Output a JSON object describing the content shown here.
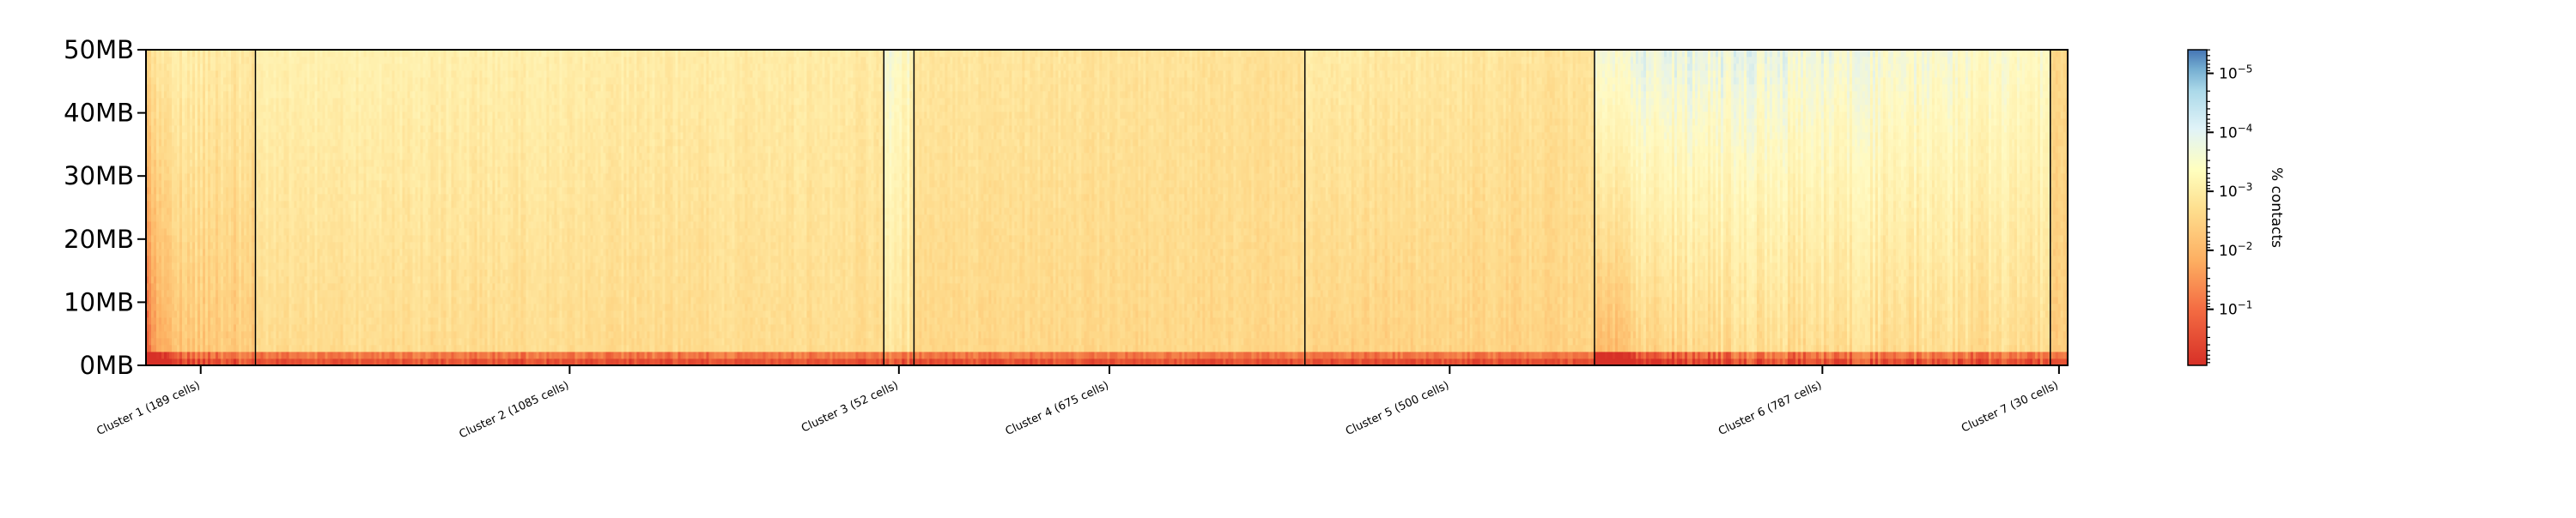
{
  "chart_data": {
    "type": "heatmap",
    "title": "",
    "xlabel": "",
    "ylabel": "",
    "y_ticks": [
      "0MB",
      "10MB",
      "20MB",
      "30MB",
      "40MB",
      "50MB"
    ],
    "ylim": [
      0,
      50
    ],
    "y_unit": "MB",
    "clusters": [
      {
        "label": "Cluster 1 (189 cells)",
        "cells": 189
      },
      {
        "label": "Cluster 2 (1085 cells)",
        "cells": 1085
      },
      {
        "label": "Cluster 3 (52 cells)",
        "cells": 52
      },
      {
        "label": "Cluster 4 (675 cells)",
        "cells": 675
      },
      {
        "label": "Cluster 5 (500 cells)",
        "cells": 500
      },
      {
        "label": "Cluster 6 (787 cells)",
        "cells": 787
      },
      {
        "label": "Cluster 7 (30 cells)",
        "cells": 30
      }
    ],
    "colorbar": {
      "label": "% contacts",
      "scale": "log",
      "colormap": "RdYlBu (reversed, high = red)",
      "ticks": [
        {
          "base": "10",
          "exp": "-5",
          "value": 1e-05
        },
        {
          "base": "10",
          "exp": "-4",
          "value": 0.0001
        },
        {
          "base": "10",
          "exp": "-3",
          "value": 0.001
        },
        {
          "base": "10",
          "exp": "-2",
          "value": 0.01
        },
        {
          "base": "10",
          "exp": "-1",
          "value": 0.1
        }
      ]
    },
    "colors": {
      "high": "#d73027",
      "mid_high": "#fdae61",
      "mid": "#fee090",
      "low": "#ffffbf",
      "lower": "#abd9e9",
      "lowest": "#4575b4"
    }
  }
}
